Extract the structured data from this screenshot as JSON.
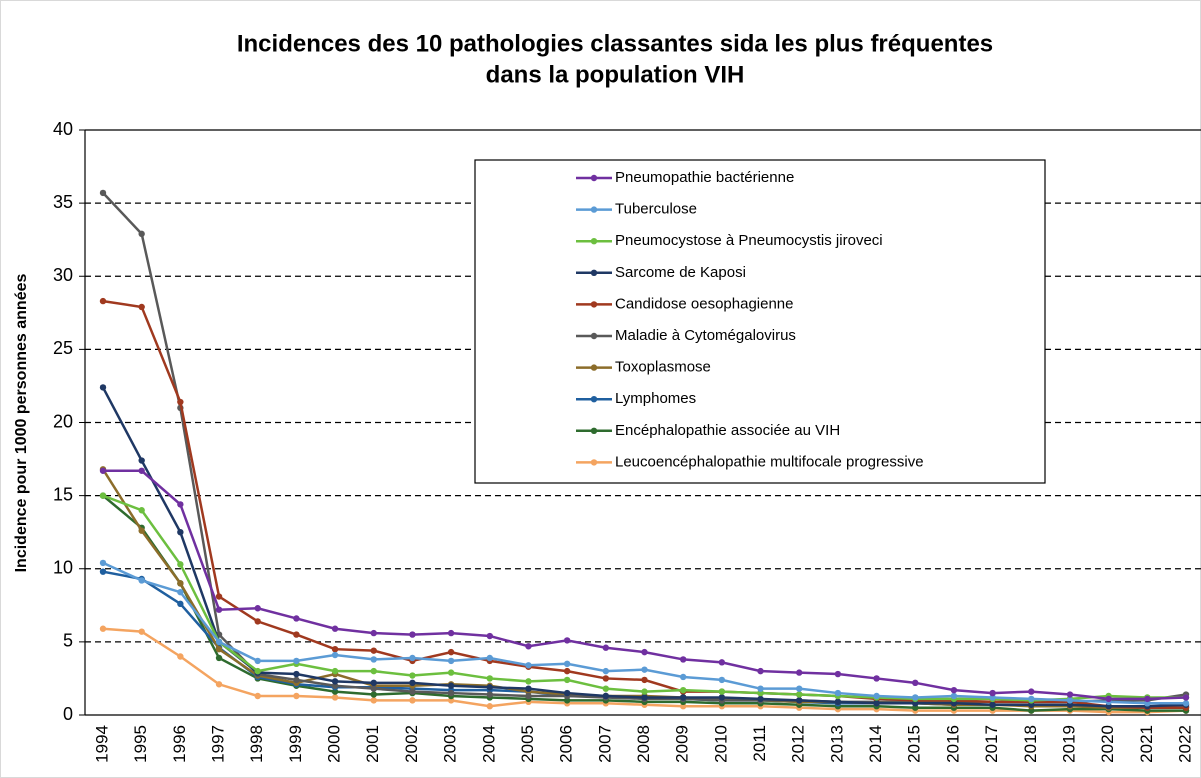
{
  "chart_data": {
    "type": "line",
    "title": [
      "Incidences des 10 pathologies classantes sida les plus fréquentes",
      "dans la population VIH"
    ],
    "y_label": "Incidence pour 1000 personnes années",
    "categories": [
      "1994",
      "1995",
      "1996",
      "1997",
      "1998",
      "1999",
      "2000",
      "2001",
      "2002",
      "2003",
      "2004",
      "2005",
      "2006",
      "2007",
      "2008",
      "2009",
      "2010",
      "2011",
      "2012",
      "2013",
      "2014",
      "2015",
      "2016",
      "2017",
      "2018",
      "2019",
      "2020",
      "2021",
      "2022"
    ],
    "ylim": [
      0,
      40
    ],
    "yticks": [
      0,
      5,
      10,
      15,
      20,
      25,
      30,
      35,
      40
    ],
    "grid": true,
    "legend": "upper right",
    "series": [
      {
        "name": "Pneumopathie bactérienne",
        "color": "#7030a0",
        "values": [
          16.7,
          16.7,
          14.4,
          7.2,
          7.3,
          6.6,
          5.9,
          5.6,
          5.5,
          5.6,
          5.4,
          4.7,
          5.1,
          4.6,
          4.3,
          3.8,
          3.6,
          3.0,
          2.9,
          2.8,
          2.5,
          2.2,
          1.7,
          1.5,
          1.6,
          1.4,
          1.1,
          1.1,
          1.2
        ]
      },
      {
        "name": "Tuberculose",
        "color": "#5b9bd5",
        "values": [
          10.4,
          9.2,
          8.4,
          5.0,
          3.7,
          3.7,
          4.1,
          3.8,
          3.9,
          3.7,
          3.9,
          3.4,
          3.5,
          3.0,
          3.1,
          2.6,
          2.4,
          1.8,
          1.8,
          1.5,
          1.3,
          1.2,
          1.3,
          1.2,
          1.1,
          1.0,
          0.9,
          0.8,
          0.8
        ]
      },
      {
        "name": "Pneumocystose à Pneumocystis jiroveci",
        "color": "#6cbf3f",
        "values": [
          15.0,
          14.0,
          10.3,
          5.0,
          3.0,
          3.5,
          3.0,
          3.0,
          2.7,
          2.9,
          2.5,
          2.3,
          2.4,
          1.8,
          1.6,
          1.7,
          1.6,
          1.5,
          1.4,
          1.3,
          1.2,
          1.1,
          1.1,
          1.1,
          1.0,
          1.1,
          1.3,
          1.2,
          1.2
        ]
      },
      {
        "name": "Sarcome de Kaposi",
        "color": "#1f3864",
        "values": [
          22.4,
          17.4,
          12.5,
          5.0,
          2.9,
          2.8,
          2.3,
          2.2,
          2.2,
          2.0,
          1.9,
          1.8,
          1.5,
          1.3,
          1.2,
          1.2,
          1.2,
          1.1,
          1.0,
          0.9,
          0.8,
          0.8,
          0.8,
          0.7,
          0.7,
          0.7,
          0.6,
          0.6,
          0.7
        ]
      },
      {
        "name": "Candidose oesophagienne",
        "color": "#a0391f",
        "values": [
          28.3,
          27.9,
          21.4,
          8.1,
          6.4,
          5.5,
          4.5,
          4.4,
          3.7,
          4.3,
          3.7,
          3.3,
          3.0,
          2.5,
          2.4,
          1.6,
          1.6,
          1.5,
          1.4,
          1.3,
          1.1,
          1.0,
          1.0,
          0.9,
          0.9,
          0.9,
          0.6,
          0.5,
          0.5
        ]
      },
      {
        "name": "Maladie à Cytomégalovirus",
        "color": "#595959",
        "values": [
          35.7,
          32.9,
          21.0,
          5.5,
          2.8,
          2.4,
          2.0,
          1.8,
          1.6,
          1.5,
          1.4,
          1.3,
          1.3,
          1.2,
          1.1,
          1.1,
          1.0,
          1.0,
          1.0,
          0.9,
          0.9,
          0.9,
          0.9,
          0.9,
          0.9,
          0.9,
          1.0,
          1.0,
          1.4
        ]
      },
      {
        "name": "Toxoplasmose",
        "color": "#8c6d2a",
        "values": [
          16.8,
          12.6,
          9.0,
          4.5,
          2.7,
          2.2,
          2.8,
          2.0,
          2.0,
          2.1,
          2.0,
          1.6,
          1.4,
          1.3,
          1.3,
          1.2,
          1.1,
          1.0,
          0.9,
          0.9,
          0.8,
          0.8,
          0.7,
          0.7,
          0.6,
          0.6,
          0.5,
          0.5,
          0.5
        ]
      },
      {
        "name": "Lymphomes",
        "color": "#1f5f9f",
        "values": [
          9.8,
          9.3,
          7.6,
          4.6,
          2.6,
          2.1,
          1.9,
          1.9,
          1.8,
          1.7,
          1.7,
          1.6,
          1.3,
          1.3,
          1.2,
          1.1,
          1.0,
          1.0,
          0.9,
          0.8,
          0.8,
          0.8,
          0.7,
          0.7,
          0.7,
          0.6,
          0.6,
          0.5,
          0.6
        ]
      },
      {
        "name": "Encéphalopathie associée au VIH",
        "color": "#2e6b2e",
        "values": [
          15.0,
          12.8,
          9.0,
          3.9,
          2.5,
          2.0,
          1.6,
          1.4,
          1.5,
          1.3,
          1.2,
          1.1,
          1.0,
          1.0,
          0.9,
          0.9,
          0.8,
          0.8,
          0.7,
          0.6,
          0.6,
          0.5,
          0.5,
          0.5,
          0.3,
          0.4,
          0.4,
          0.3,
          0.3
        ]
      },
      {
        "name": "Leucoencéphalopathie multifocale progressive",
        "color": "#f4a460",
        "values": [
          5.9,
          5.7,
          4.0,
          2.1,
          1.3,
          1.3,
          1.2,
          1.0,
          1.0,
          1.0,
          0.6,
          0.9,
          0.8,
          0.8,
          0.7,
          0.6,
          0.6,
          0.6,
          0.5,
          0.4,
          0.4,
          0.3,
          0.3,
          0.3,
          0.3,
          0.3,
          0.2,
          0.2,
          0.3
        ]
      }
    ]
  }
}
